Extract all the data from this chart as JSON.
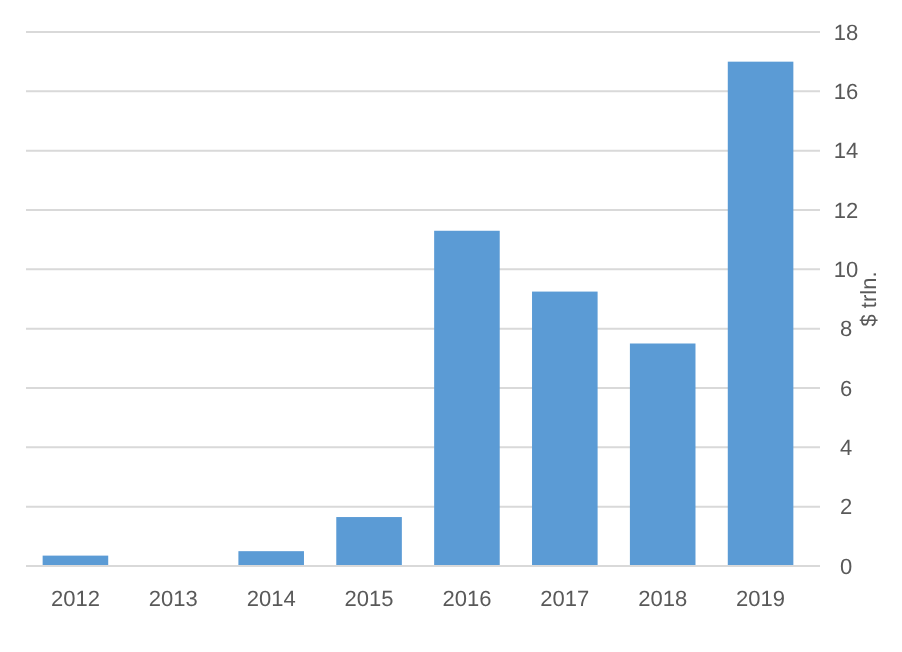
{
  "chart_data": {
    "type": "bar",
    "ylabel": "$ trln.",
    "categories": [
      "2012",
      "2013",
      "2014",
      "2015",
      "2016",
      "2017",
      "2018",
      "2019"
    ],
    "values": [
      0.35,
      0,
      0.5,
      1.65,
      11.3,
      9.25,
      7.5,
      17
    ],
    "color": "#5b9bd5",
    "ylim": [
      0,
      18
    ],
    "yticks": [
      0,
      2,
      4,
      6,
      8,
      10,
      12,
      14,
      16,
      18
    ],
    "grid": "y"
  }
}
